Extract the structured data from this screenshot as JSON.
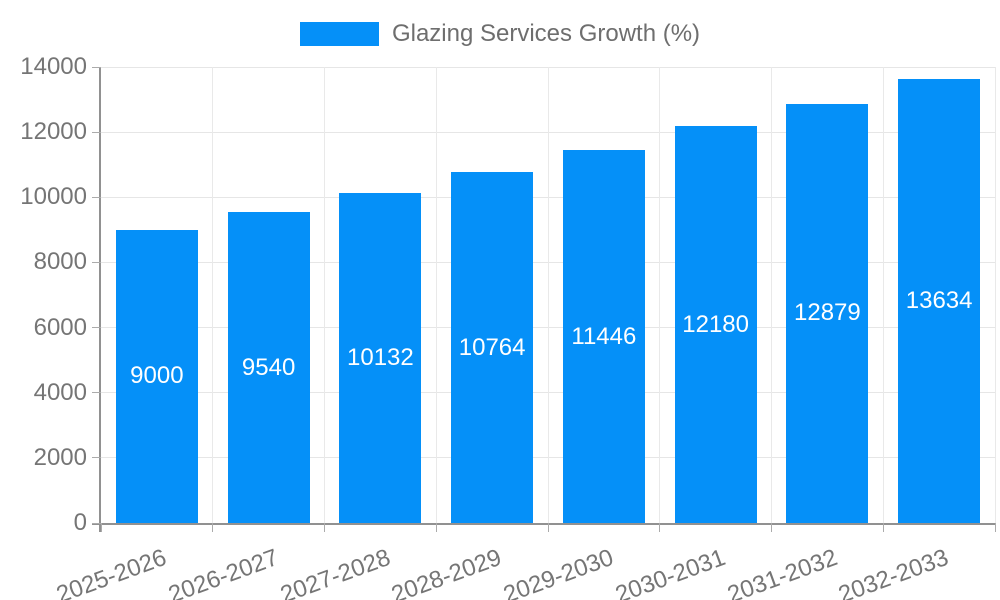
{
  "chart_data": {
    "type": "bar",
    "title": "",
    "legend_label": "Glazing Services Growth (%)",
    "legend_position": "top",
    "categories": [
      "2025-2026",
      "2026-2027",
      "2027-2028",
      "2028-2029",
      "2029-2030",
      "2030-2031",
      "2031-2032",
      "2032-2033"
    ],
    "values": [
      9000,
      9540,
      10132,
      10764,
      11446,
      12180,
      12879,
      13634
    ],
    "xlabel": "",
    "ylabel": "",
    "ylim": [
      0,
      14000
    ],
    "ytick_step": 2000,
    "grid": true,
    "x_label_rotation_deg": -20,
    "bar_color": "#0590f8",
    "bar_value_label_color": "#ffffff",
    "axis_text_color": "#757575",
    "gridline_color": "#e6e6e6",
    "axis_line_color": "#919191"
  }
}
